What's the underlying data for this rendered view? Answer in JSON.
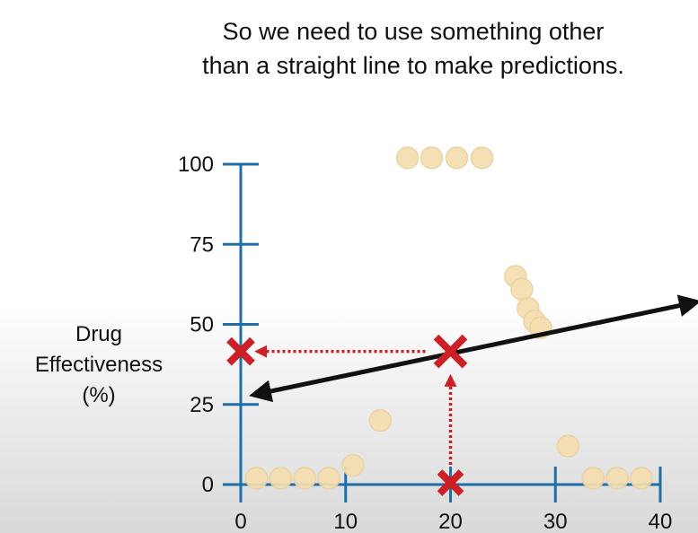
{
  "title": {
    "line1": "So we need to use something other",
    "line2": "than a straight line to make predictions."
  },
  "colors": {
    "axis": "#1f6ea6",
    "point": "#f5deb0",
    "point_stroke": "#ead0a0",
    "fit_line": "#111111",
    "prediction": "#cc1f26"
  },
  "chart_data": {
    "type": "scatter",
    "title": "",
    "xlabel": "",
    "ylabel_lines": [
      "Drug",
      "Effectiveness",
      "(%)"
    ],
    "xlim": [
      0,
      40
    ],
    "ylim": [
      0,
      100
    ],
    "xticks": [
      0,
      10,
      20,
      30,
      40
    ],
    "yticks": [
      0,
      25,
      50,
      75,
      100
    ],
    "grid": false,
    "points": [
      {
        "x": 1.5,
        "y": 2
      },
      {
        "x": 3.8,
        "y": 2
      },
      {
        "x": 6.1,
        "y": 2
      },
      {
        "x": 8.4,
        "y": 2
      },
      {
        "x": 10.7,
        "y": 6
      },
      {
        "x": 13.3,
        "y": 20
      },
      {
        "x": 15.9,
        "y": 102
      },
      {
        "x": 18.2,
        "y": 102
      },
      {
        "x": 20.6,
        "y": 102
      },
      {
        "x": 23.0,
        "y": 102
      },
      {
        "x": 26.2,
        "y": 65
      },
      {
        "x": 26.8,
        "y": 61
      },
      {
        "x": 27.4,
        "y": 55
      },
      {
        "x": 28.0,
        "y": 51
      },
      {
        "x": 28.6,
        "y": 49
      },
      {
        "x": 31.2,
        "y": 12
      },
      {
        "x": 33.6,
        "y": 2
      },
      {
        "x": 35.9,
        "y": 2
      },
      {
        "x": 38.2,
        "y": 2
      }
    ],
    "fit_line": {
      "x0": 1.2,
      "y0": 28,
      "x1": 43.5,
      "y1": 57
    },
    "prediction": {
      "x": 20,
      "y": 41
    }
  }
}
